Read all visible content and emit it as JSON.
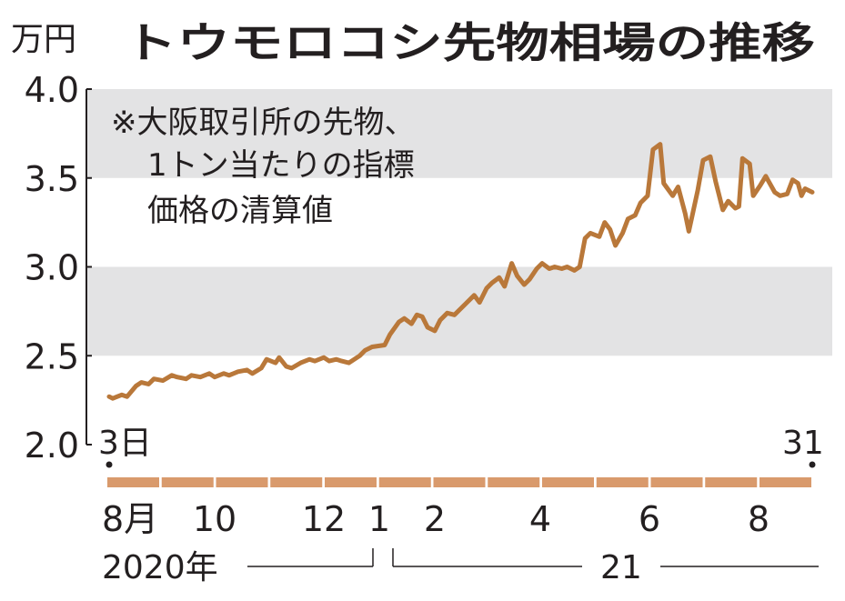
{
  "unit_label": "万円",
  "title": "トウモロコシ先物相場の推移",
  "note_lines": [
    "※大阪取引所の先物、",
    "1トン当たりの指標",
    "価格の清算値"
  ],
  "start_day_label": "3日",
  "end_day_label": "31",
  "year_labels": [
    "2020年",
    "21"
  ],
  "colors": {
    "line": "#b9783a",
    "band": "#e3e3e4",
    "timeline": "#d99a6c",
    "text": "#231f20"
  },
  "chart_data": {
    "type": "line",
    "title": "トウモロコシ先物相場の推移",
    "ylabel": "万円",
    "ylim": [
      2.0,
      4.0
    ],
    "y_ticks": [
      "4.0",
      "3.5",
      "3.0",
      "2.5",
      "2.0"
    ],
    "y_tick_values": [
      4.0,
      3.5,
      3.0,
      2.5,
      2.0
    ],
    "xlim": [
      "2020-08-03",
      "2021-08-31"
    ],
    "x_ticks": [
      {
        "label": "8月",
        "date": "2020-08-03"
      },
      {
        "label": "10",
        "date": "2020-10-01"
      },
      {
        "label": "12",
        "date": "2020-12-01"
      },
      {
        "label": "1",
        "date": "2021-01-01"
      },
      {
        "label": "2",
        "date": "2021-02-01"
      },
      {
        "label": "4",
        "date": "2021-04-01"
      },
      {
        "label": "6",
        "date": "2021-06-01"
      },
      {
        "label": "8",
        "date": "2021-08-01"
      }
    ],
    "grid_bands": [
      [
        3.5,
        4.0
      ],
      [
        2.5,
        3.0
      ]
    ],
    "series": [
      {
        "points": [
          [
            "2020-08-03",
            2.27
          ],
          [
            "2020-08-05",
            2.26
          ],
          [
            "2020-08-10",
            2.28
          ],
          [
            "2020-08-13",
            2.27
          ],
          [
            "2020-08-18",
            2.33
          ],
          [
            "2020-08-21",
            2.35
          ],
          [
            "2020-08-25",
            2.34
          ],
          [
            "2020-08-28",
            2.37
          ],
          [
            "2020-09-02",
            2.36
          ],
          [
            "2020-09-07",
            2.39
          ],
          [
            "2020-09-10",
            2.38
          ],
          [
            "2020-09-15",
            2.37
          ],
          [
            "2020-09-18",
            2.39
          ],
          [
            "2020-09-23",
            2.38
          ],
          [
            "2020-09-28",
            2.4
          ],
          [
            "2020-10-01",
            2.38
          ],
          [
            "2020-10-06",
            2.4
          ],
          [
            "2020-10-09",
            2.39
          ],
          [
            "2020-10-14",
            2.41
          ],
          [
            "2020-10-19",
            2.42
          ],
          [
            "2020-10-22",
            2.4
          ],
          [
            "2020-10-27",
            2.43
          ],
          [
            "2020-10-30",
            2.48
          ],
          [
            "2020-11-04",
            2.46
          ],
          [
            "2020-11-06",
            2.49
          ],
          [
            "2020-11-10",
            2.44
          ],
          [
            "2020-11-13",
            2.43
          ],
          [
            "2020-11-18",
            2.46
          ],
          [
            "2020-11-23",
            2.48
          ],
          [
            "2020-11-26",
            2.47
          ],
          [
            "2020-12-01",
            2.49
          ],
          [
            "2020-12-04",
            2.47
          ],
          [
            "2020-12-08",
            2.48
          ],
          [
            "2020-12-11",
            2.47
          ],
          [
            "2020-12-15",
            2.46
          ],
          [
            "2020-12-18",
            2.48
          ],
          [
            "2020-12-21",
            2.5
          ],
          [
            "2020-12-24",
            2.53
          ],
          [
            "2020-12-28",
            2.55
          ],
          [
            "2021-01-04",
            2.56
          ],
          [
            "2021-01-07",
            2.62
          ],
          [
            "2021-01-12",
            2.69
          ],
          [
            "2021-01-15",
            2.71
          ],
          [
            "2021-01-19",
            2.68
          ],
          [
            "2021-01-22",
            2.73
          ],
          [
            "2021-01-25",
            2.72
          ],
          [
            "2021-01-28",
            2.66
          ],
          [
            "2021-02-01",
            2.64
          ],
          [
            "2021-02-04",
            2.7
          ],
          [
            "2021-02-08",
            2.74
          ],
          [
            "2021-02-12",
            2.73
          ],
          [
            "2021-02-16",
            2.77
          ],
          [
            "2021-02-19",
            2.8
          ],
          [
            "2021-02-23",
            2.84
          ],
          [
            "2021-02-26",
            2.8
          ],
          [
            "2021-03-02",
            2.88
          ],
          [
            "2021-03-05",
            2.91
          ],
          [
            "2021-03-09",
            2.94
          ],
          [
            "2021-03-12",
            2.89
          ],
          [
            "2021-03-16",
            3.02
          ],
          [
            "2021-03-19",
            2.95
          ],
          [
            "2021-03-23",
            2.9
          ],
          [
            "2021-03-26",
            2.93
          ],
          [
            "2021-03-30",
            2.99
          ],
          [
            "2021-04-02",
            3.02
          ],
          [
            "2021-04-06",
            2.99
          ],
          [
            "2021-04-09",
            3.0
          ],
          [
            "2021-04-13",
            2.99
          ],
          [
            "2021-04-16",
            3.0
          ],
          [
            "2021-04-20",
            2.98
          ],
          [
            "2021-04-23",
            3.0
          ],
          [
            "2021-04-26",
            3.16
          ],
          [
            "2021-04-29",
            3.19
          ],
          [
            "2021-05-04",
            3.17
          ],
          [
            "2021-05-07",
            3.25
          ],
          [
            "2021-05-10",
            3.21
          ],
          [
            "2021-05-13",
            3.12
          ],
          [
            "2021-05-17",
            3.19
          ],
          [
            "2021-05-20",
            3.27
          ],
          [
            "2021-05-24",
            3.29
          ],
          [
            "2021-05-27",
            3.36
          ],
          [
            "2021-05-31",
            3.4
          ],
          [
            "2021-06-03",
            3.66
          ],
          [
            "2021-06-07",
            3.69
          ],
          [
            "2021-06-09",
            3.47
          ],
          [
            "2021-06-14",
            3.4
          ],
          [
            "2021-06-17",
            3.45
          ],
          [
            "2021-06-21",
            3.3
          ],
          [
            "2021-06-23",
            3.2
          ],
          [
            "2021-06-28",
            3.43
          ],
          [
            "2021-07-01",
            3.6
          ],
          [
            "2021-07-05",
            3.62
          ],
          [
            "2021-07-08",
            3.48
          ],
          [
            "2021-07-12",
            3.32
          ],
          [
            "2021-07-15",
            3.37
          ],
          [
            "2021-07-19",
            3.33
          ],
          [
            "2021-07-21",
            3.34
          ],
          [
            "2021-07-23",
            3.61
          ],
          [
            "2021-07-27",
            3.58
          ],
          [
            "2021-07-29",
            3.4
          ],
          [
            "2021-08-02",
            3.46
          ],
          [
            "2021-08-05",
            3.51
          ],
          [
            "2021-08-10",
            3.42
          ],
          [
            "2021-08-13",
            3.4
          ],
          [
            "2021-08-17",
            3.41
          ],
          [
            "2021-08-20",
            3.49
          ],
          [
            "2021-08-23",
            3.47
          ],
          [
            "2021-08-25",
            3.4
          ],
          [
            "2021-08-27",
            3.44
          ],
          [
            "2021-08-31",
            3.42
          ]
        ]
      }
    ]
  }
}
